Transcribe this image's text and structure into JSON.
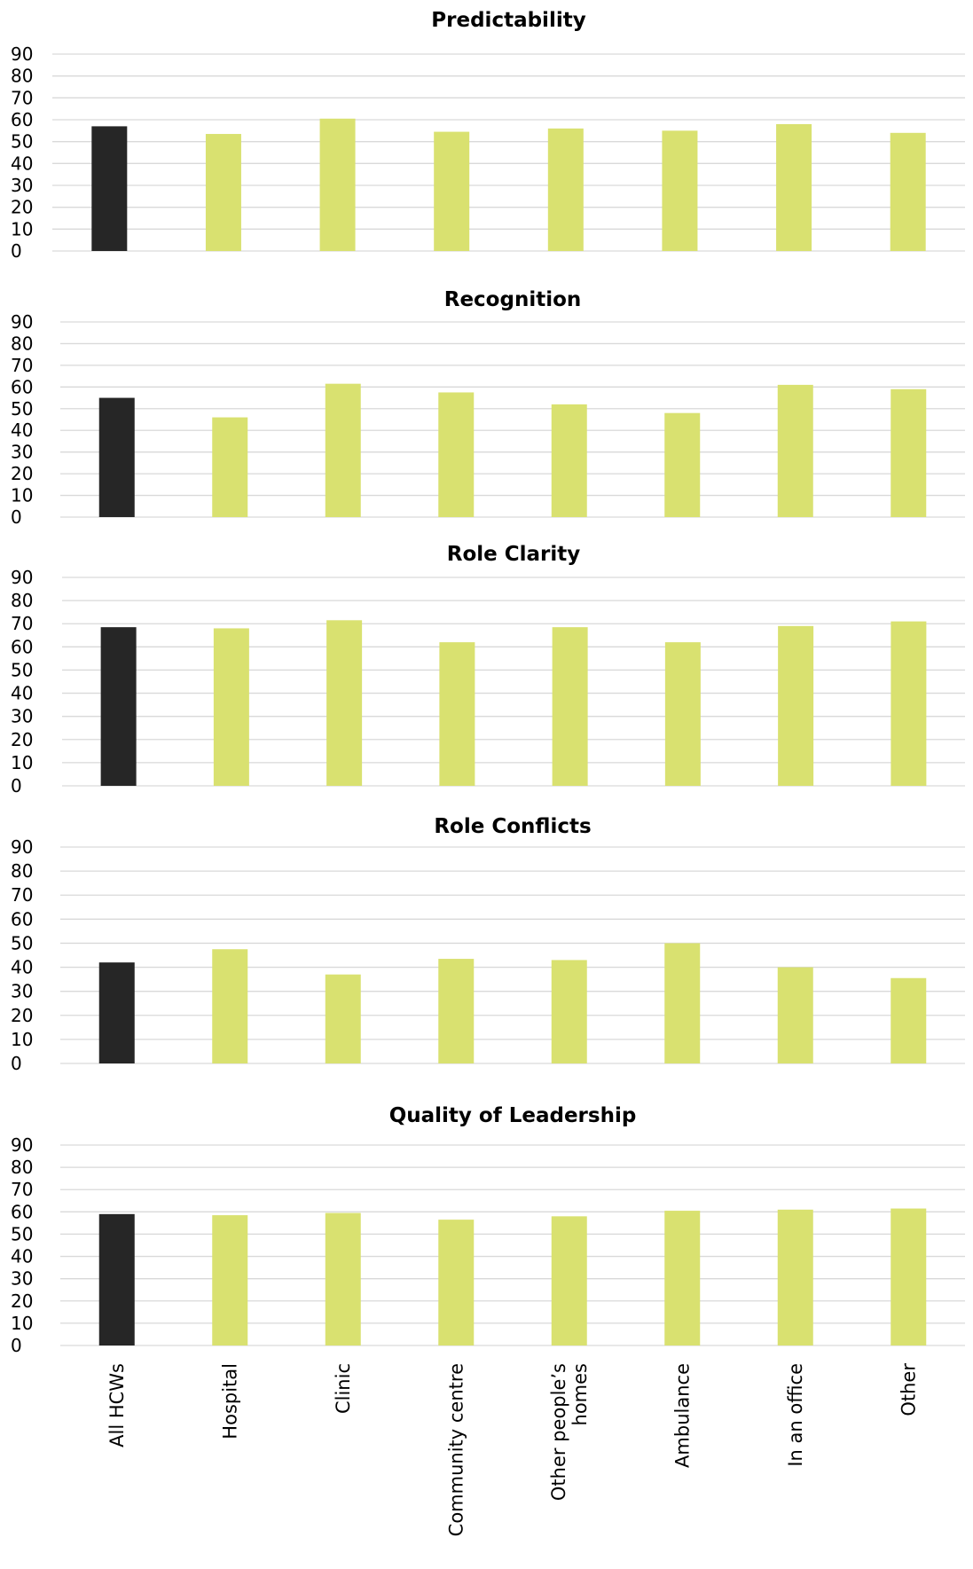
{
  "colors": {
    "highlight": "#262626",
    "bar": "#d9e170",
    "grid": "#d9d9d9",
    "text": "#000000"
  },
  "categories": [
    "All HCWs",
    "Hospital",
    "Clinic",
    "Community centre",
    "Other people’s homes",
    "Ambulance",
    "In an office",
    "Other"
  ],
  "chart_data": [
    {
      "type": "bar",
      "title": "Predictability",
      "categories": [
        "All HCWs",
        "Hospital",
        "Clinic",
        "Community centre",
        "Other people’s homes",
        "Ambulance",
        "In an office",
        "Other"
      ],
      "values": [
        57,
        53.5,
        60.5,
        54.5,
        56,
        55,
        58,
        54
      ],
      "highlight_index": 0,
      "ylim": [
        0,
        90
      ],
      "yticks": [
        0,
        10,
        20,
        30,
        40,
        50,
        60,
        70,
        80,
        90
      ],
      "grid": true,
      "xlabel": "",
      "ylabel": ""
    },
    {
      "type": "bar",
      "title": "Recognition",
      "categories": [
        "All HCWs",
        "Hospital",
        "Clinic",
        "Community centre",
        "Other people’s homes",
        "Ambulance",
        "In an office",
        "Other"
      ],
      "values": [
        55,
        46,
        61.5,
        57.5,
        52,
        48,
        61,
        59
      ],
      "highlight_index": 0,
      "ylim": [
        0,
        90
      ],
      "yticks": [
        0,
        10,
        20,
        30,
        40,
        50,
        60,
        70,
        80,
        90
      ],
      "grid": true,
      "xlabel": "",
      "ylabel": ""
    },
    {
      "type": "bar",
      "title": "Role Clarity",
      "categories": [
        "All HCWs",
        "Hospital",
        "Clinic",
        "Community centre",
        "Other people’s homes",
        "Ambulance",
        "In an office",
        "Other"
      ],
      "values": [
        68.5,
        68,
        71.5,
        62,
        68.5,
        62,
        69,
        71
      ],
      "highlight_index": 0,
      "ylim": [
        0,
        90
      ],
      "yticks": [
        0,
        10,
        20,
        30,
        40,
        50,
        60,
        70,
        80,
        90
      ],
      "grid": true,
      "xlabel": "",
      "ylabel": ""
    },
    {
      "type": "bar",
      "title": "Role Conflicts",
      "categories": [
        "All HCWs",
        "Hospital",
        "Clinic",
        "Community centre",
        "Other people’s homes",
        "Ambulance",
        "In an office",
        "Other"
      ],
      "values": [
        42,
        47.5,
        37,
        43.5,
        43,
        50,
        40,
        35.5
      ],
      "highlight_index": 0,
      "ylim": [
        0,
        90
      ],
      "yticks": [
        0,
        10,
        20,
        30,
        40,
        50,
        60,
        70,
        80,
        90
      ],
      "grid": true,
      "xlabel": "",
      "ylabel": ""
    },
    {
      "type": "bar",
      "title": "Quality of Leadership",
      "categories": [
        "All HCWs",
        "Hospital",
        "Clinic",
        "Community centre",
        "Other people’s homes",
        "Ambulance",
        "In an office",
        "Other"
      ],
      "values": [
        59,
        58.5,
        59.5,
        56.5,
        58,
        60.5,
        61,
        61.5
      ],
      "highlight_index": 0,
      "ylim": [
        0,
        90
      ],
      "yticks": [
        0,
        10,
        20,
        30,
        40,
        50,
        60,
        70,
        80,
        90
      ],
      "grid": true,
      "xlabel": "",
      "ylabel": ""
    }
  ]
}
